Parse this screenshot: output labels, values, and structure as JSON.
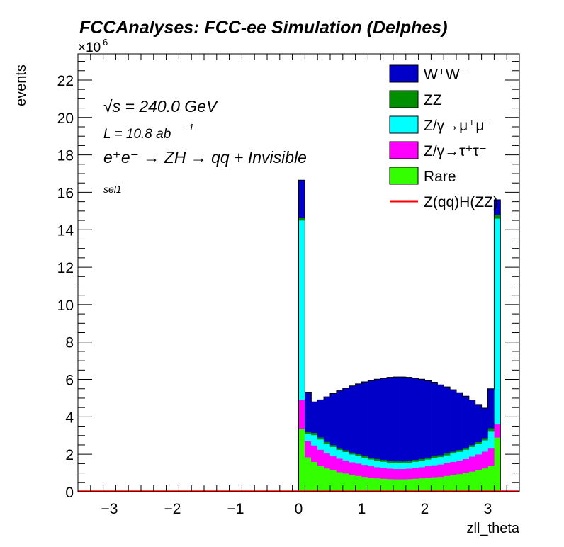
{
  "chart_data": {
    "type": "bar",
    "title": "FCCAnalyses: FCC-ee Simulation (Delphes)",
    "xlabel": "zll_theta",
    "ylabel": "events",
    "y_exponent_label": "×10",
    "y_exponent": "6",
    "xlim": [
      -3.5,
      3.5
    ],
    "ylim": [
      0,
      23.4
    ],
    "x_ticks": [
      -3,
      -2,
      -1,
      0,
      1,
      2,
      3
    ],
    "y_ticks": [
      0,
      2,
      4,
      6,
      8,
      10,
      12,
      14,
      16,
      18,
      20,
      22
    ],
    "x_tick_labels": [
      "−3",
      "−2",
      "−1",
      "0",
      "1",
      "2",
      "3"
    ],
    "y_tick_labels": [
      "0",
      "2",
      "4",
      "6",
      "8",
      "10",
      "12",
      "14",
      "16",
      "18",
      "20",
      "22"
    ],
    "annotations": {
      "sqrt_s": "√s = 240.0 GeV",
      "lumi_prefix": "L = 10.8 ab",
      "lumi_exp": "-1",
      "process": "e⁺e⁻ → ZH → qq + Invisible",
      "selection": "sel1"
    },
    "legend_position": "top-right",
    "bins": {
      "x_start": 0.0,
      "x_end": 3.2,
      "count": 32
    },
    "series": [
      {
        "name": "Rare",
        "legend_label": "Rare",
        "color": "#33ff00",
        "values": [
          3.35,
          1.85,
          1.6,
          1.4,
          1.25,
          1.15,
          1.05,
          0.98,
          0.9,
          0.85,
          0.8,
          0.75,
          0.72,
          0.7,
          0.68,
          0.67,
          0.67,
          0.68,
          0.7,
          0.72,
          0.75,
          0.78,
          0.8,
          0.85,
          0.9,
          0.95,
          1.0,
          1.08,
          1.15,
          1.25,
          1.4,
          2.9
        ]
      },
      {
        "name": "Z/γ→τ⁺τ⁻",
        "legend_label": "Z/γ→τ⁺τ⁻",
        "color": "#ff00ff",
        "values": [
          1.55,
          0.85,
          0.88,
          0.85,
          0.8,
          0.75,
          0.72,
          0.7,
          0.68,
          0.66,
          0.64,
          0.62,
          0.6,
          0.58,
          0.56,
          0.55,
          0.55,
          0.56,
          0.58,
          0.6,
          0.62,
          0.64,
          0.66,
          0.68,
          0.7,
          0.72,
          0.75,
          0.8,
          0.85,
          0.9,
          0.95,
          0.7
        ]
      },
      {
        "name": "Z/γ→μ⁺μ⁻",
        "legend_label": "Z/γ→μ⁺μ⁻",
        "color": "#00ffff",
        "values": [
          9.6,
          0.4,
          0.55,
          0.55,
          0.52,
          0.5,
          0.47,
          0.45,
          0.42,
          0.4,
          0.38,
          0.36,
          0.34,
          0.33,
          0.32,
          0.31,
          0.31,
          0.32,
          0.33,
          0.34,
          0.36,
          0.38,
          0.4,
          0.42,
          0.45,
          0.47,
          0.5,
          0.52,
          0.55,
          0.6,
          0.9,
          11.0
        ]
      },
      {
        "name": "ZZ",
        "legend_label": "ZZ",
        "color": "#008f00",
        "values": [
          0.15,
          0.12,
          0.12,
          0.11,
          0.1,
          0.1,
          0.1,
          0.1,
          0.1,
          0.1,
          0.1,
          0.1,
          0.1,
          0.1,
          0.1,
          0.1,
          0.1,
          0.1,
          0.1,
          0.1,
          0.1,
          0.1,
          0.1,
          0.1,
          0.1,
          0.1,
          0.1,
          0.1,
          0.11,
          0.12,
          0.15,
          0.2
        ]
      },
      {
        "name": "W⁺W⁻",
        "legend_label": "W⁺W⁻",
        "color": "#0000c8",
        "values": [
          2.0,
          2.1,
          1.65,
          2.0,
          2.4,
          2.75,
          3.05,
          3.3,
          3.55,
          3.75,
          3.95,
          4.1,
          4.25,
          4.35,
          4.45,
          4.5,
          4.5,
          4.45,
          4.35,
          4.25,
          4.1,
          3.95,
          3.75,
          3.55,
          3.3,
          3.05,
          2.75,
          2.4,
          2.0,
          1.6,
          2.1,
          0.8
        ]
      },
      {
        "name": "Z(qq)H(ZZ)",
        "legend_label": "Z(qq)H(ZZ)",
        "color": "#ff0000",
        "type": "line",
        "values": [
          0.01,
          0.01,
          0.01,
          0.01,
          0.01,
          0.01,
          0.01,
          0.01,
          0.01,
          0.01,
          0.01,
          0.01,
          0.01,
          0.01,
          0.01,
          0.01,
          0.01,
          0.01,
          0.01,
          0.01,
          0.01,
          0.01,
          0.01,
          0.01,
          0.01,
          0.01,
          0.01,
          0.01,
          0.01,
          0.01,
          0.01,
          0.01
        ]
      }
    ],
    "legend_order": [
      "W⁺W⁻",
      "ZZ",
      "Z/γ→μ⁺μ⁻",
      "Z/γ→τ⁺τ⁻",
      "Rare",
      "Z(qq)H(ZZ)"
    ]
  }
}
